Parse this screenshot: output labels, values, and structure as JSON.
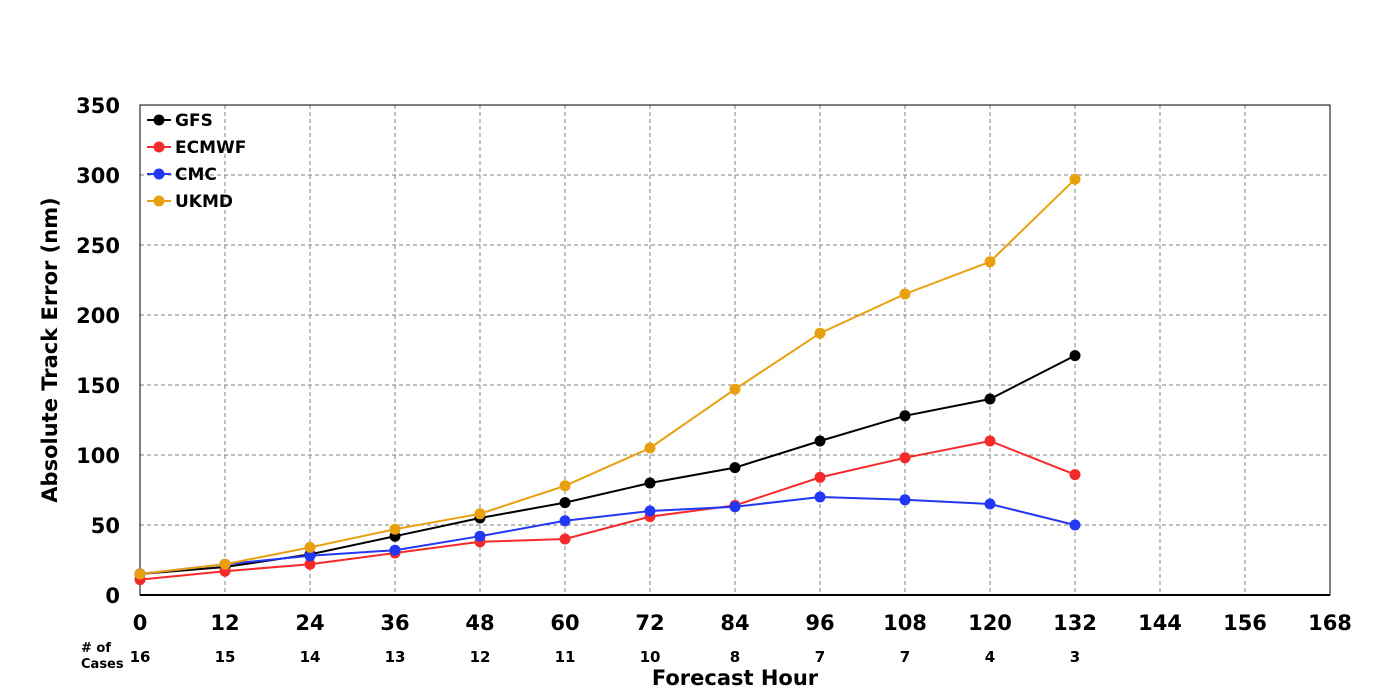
{
  "chart_data": {
    "type": "line",
    "xlabel": "Forecast Hour",
    "ylabel": "Absolute Track Error (nm)",
    "xlim": [
      0,
      168
    ],
    "ylim": [
      0,
      350
    ],
    "x_ticks": [
      0,
      12,
      24,
      36,
      48,
      60,
      72,
      84,
      96,
      108,
      120,
      132,
      144,
      156,
      168
    ],
    "y_ticks": [
      0,
      50,
      100,
      150,
      200,
      250,
      300,
      350
    ],
    "grid": true,
    "legend_position": "top-left",
    "cases_label": "# of\nCases",
    "cases": [
      16,
      15,
      14,
      13,
      12,
      11,
      10,
      8,
      7,
      7,
      4,
      3
    ],
    "x": [
      0,
      12,
      24,
      36,
      48,
      60,
      72,
      84,
      96,
      108,
      120,
      132
    ],
    "series": [
      {
        "name": "GFS",
        "color": "#000000",
        "values": [
          15,
          20,
          29,
          42,
          55,
          66,
          80,
          91,
          110,
          128,
          140,
          171
        ]
      },
      {
        "name": "ECMWF",
        "color": "#f52a2a",
        "values": [
          11,
          17,
          22,
          30,
          38,
          40,
          56,
          64,
          84,
          98,
          110,
          86
        ]
      },
      {
        "name": "CMC",
        "color": "#2338f5",
        "values": [
          15,
          22,
          28,
          32,
          42,
          53,
          60,
          63,
          70,
          68,
          65,
          50
        ]
      },
      {
        "name": "UKMD",
        "color": "#e8a010",
        "values": [
          15,
          22,
          34,
          47,
          58,
          78,
          105,
          147,
          187,
          215,
          238,
          297
        ]
      }
    ]
  }
}
